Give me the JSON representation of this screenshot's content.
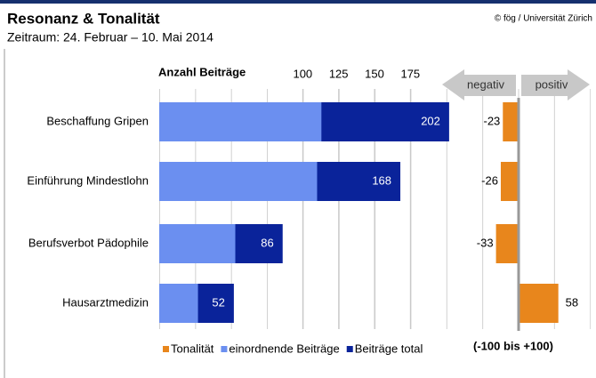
{
  "title": "Resonanz & Tonalität",
  "subtitle": "Zeitraum: 24. Februar – 10. Mai 2014",
  "source": "© fög / Universität Zürich",
  "chart_data": [
    {
      "type": "bar",
      "orientation": "horizontal",
      "x_label": "Anzahl Beiträge",
      "categories": [
        "Beschaffung Gripen",
        "Einführung Mindestlohn",
        "Berufsverbot Pädophile",
        "Hausarztmedizin"
      ],
      "series": [
        {
          "name": "einordnende Beiträge",
          "color": "#6b8ff0",
          "values": [
            113,
            110,
            53,
            27
          ]
        },
        {
          "name": "Beiträge total",
          "color": "#0a239a",
          "values": [
            202,
            168,
            86,
            52
          ],
          "labels": true
        }
      ],
      "xlim": [
        0,
        225
      ],
      "xticks": [
        100,
        125,
        150,
        175
      ],
      "grid": true
    },
    {
      "type": "bar",
      "orientation": "horizontal",
      "categories": [
        "Beschaffung Gripen",
        "Einführung Mindestlohn",
        "Berufsverbot Pädophile",
        "Hausarztmedizin"
      ],
      "series": [
        {
          "name": "Tonalität",
          "color": "#e8861c",
          "values": [
            -23,
            -26,
            -33,
            58
          ],
          "labels": true
        }
      ],
      "xlim": [
        -100,
        100
      ],
      "negative_label": "negativ",
      "positive_label": "positiv",
      "range_note": "(-100 bis +100)"
    }
  ]
}
